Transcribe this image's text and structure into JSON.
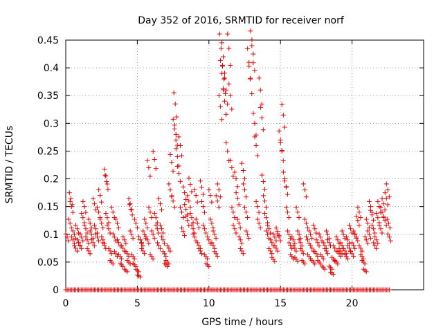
{
  "chart_data": {
    "type": "scatter",
    "title": "Day 352 of 2016, SRMTID for receiver norf",
    "xlabel": "GPS time / hours",
    "ylabel": "SRMTID / TECUs",
    "xlim": [
      0,
      25
    ],
    "ylim": [
      0,
      0.45
    ],
    "xticks": [
      0,
      5,
      10,
      15,
      20
    ],
    "xtick_labels": [
      "0",
      "5",
      "10",
      "15",
      "20"
    ],
    "yticks": [
      0,
      0.05,
      0.1,
      0.15,
      0.2,
      0.25,
      0.3,
      0.35,
      0.4,
      0.45
    ],
    "ytick_labels": [
      "0",
      "0.05",
      "0.1",
      "0.15",
      "0.2",
      "0.25",
      "0.3",
      "0.35",
      "0.4",
      "0.45"
    ],
    "grid": true,
    "marker": "+",
    "color": "#e00000",
    "data_range_hours": [
      0,
      22.6
    ],
    "series": [
      {
        "name": "SRMTID",
        "points": [
          [
            0.1,
            0.095
          ],
          [
            0.3,
            0.12
          ],
          [
            0.35,
            0.165
          ],
          [
            0.4,
            0.15
          ],
          [
            0.5,
            0.09
          ],
          [
            0.6,
            0.1
          ],
          [
            0.7,
            0.075
          ],
          [
            0.8,
            0.11
          ],
          [
            0.9,
            0.085
          ],
          [
            1.0,
            0.08
          ],
          [
            1.1,
            0.095
          ],
          [
            1.2,
            0.13
          ],
          [
            1.3,
            0.15
          ],
          [
            1.4,
            0.11
          ],
          [
            1.5,
            0.09
          ],
          [
            1.6,
            0.07
          ],
          [
            1.7,
            0.12
          ],
          [
            1.8,
            0.1
          ],
          [
            1.9,
            0.085
          ],
          [
            2.0,
            0.155
          ],
          [
            2.1,
            0.11
          ],
          [
            2.2,
            0.095
          ],
          [
            2.3,
            0.14
          ],
          [
            2.4,
            0.17
          ],
          [
            2.5,
            0.12
          ],
          [
            2.6,
            0.09
          ],
          [
            2.7,
            0.08
          ],
          [
            2.8,
            0.205
          ],
          [
            2.85,
            0.195
          ],
          [
            2.9,
            0.13
          ],
          [
            3.0,
            0.11
          ],
          [
            3.1,
            0.07
          ],
          [
            3.2,
            0.05
          ],
          [
            3.3,
            0.14
          ],
          [
            3.4,
            0.095
          ],
          [
            3.5,
            0.065
          ],
          [
            3.6,
            0.12
          ],
          [
            3.7,
            0.085
          ],
          [
            3.8,
            0.06
          ],
          [
            3.9,
            0.045
          ],
          [
            4.0,
            0.075
          ],
          [
            4.1,
            0.09
          ],
          [
            4.2,
            0.035
          ],
          [
            4.3,
            0.065
          ],
          [
            4.4,
            0.05
          ],
          [
            4.5,
            0.155
          ],
          [
            4.55,
            0.145
          ],
          [
            4.6,
            0.1
          ],
          [
            4.7,
            0.06
          ],
          [
            4.8,
            0.045
          ],
          [
            4.9,
            0.12
          ],
          [
            5.0,
            0.035
          ],
          [
            5.1,
            0.025
          ],
          [
            5.2,
            0.09
          ],
          [
            5.3,
            0.085
          ],
          [
            5.4,
            0.07
          ],
          [
            5.5,
            0.1
          ],
          [
            5.6,
            0.12
          ],
          [
            5.7,
            0.09
          ],
          [
            5.8,
            0.22
          ],
          [
            5.9,
            0.14
          ],
          [
            6.0,
            0.06
          ],
          [
            6.1,
            0.1
          ],
          [
            6.2,
            0.235
          ],
          [
            6.3,
            0.13
          ],
          [
            6.4,
            0.11
          ],
          [
            6.5,
            0.08
          ],
          [
            6.6,
            0.155
          ],
          [
            6.7,
            0.11
          ],
          [
            6.8,
            0.09
          ],
          [
            6.9,
            0.065
          ],
          [
            7.0,
            0.045
          ],
          [
            7.1,
            0.05
          ],
          [
            7.2,
            0.075
          ],
          [
            7.3,
            0.18
          ],
          [
            7.4,
            0.23
          ],
          [
            7.5,
            0.16
          ],
          [
            7.6,
            0.29
          ],
          [
            7.65,
            0.335
          ],
          [
            7.7,
            0.28
          ],
          [
            7.8,
            0.24
          ],
          [
            7.9,
            0.21
          ],
          [
            8.0,
            0.26
          ],
          [
            8.1,
            0.14
          ],
          [
            8.2,
            0.105
          ],
          [
            8.3,
            0.175
          ],
          [
            8.4,
            0.145
          ],
          [
            8.5,
            0.125
          ],
          [
            8.6,
            0.16
          ],
          [
            8.7,
            0.19
          ],
          [
            8.8,
            0.13
          ],
          [
            8.9,
            0.11
          ],
          [
            9.0,
            0.095
          ],
          [
            9.1,
            0.17
          ],
          [
            9.2,
            0.12
          ],
          [
            9.3,
            0.08
          ],
          [
            9.4,
            0.07
          ],
          [
            9.5,
            0.185
          ],
          [
            9.6,
            0.15
          ],
          [
            9.7,
            0.11
          ],
          [
            9.8,
            0.06
          ],
          [
            9.9,
            0.045
          ],
          [
            10.0,
            0.09
          ],
          [
            10.1,
            0.17
          ],
          [
            10.2,
            0.12
          ],
          [
            10.3,
            0.08
          ],
          [
            10.4,
            0.1
          ],
          [
            10.5,
            0.065
          ],
          [
            10.6,
            0.16
          ],
          [
            10.7,
            0.18
          ],
          [
            10.8,
            0.33
          ],
          [
            10.85,
            0.435
          ],
          [
            10.9,
            0.39
          ],
          [
            11.0,
            0.42
          ],
          [
            11.05,
            0.38
          ],
          [
            11.1,
            0.34
          ],
          [
            11.2,
            0.36
          ],
          [
            11.3,
            0.25
          ],
          [
            11.4,
            0.435
          ],
          [
            11.5,
            0.35
          ],
          [
            11.6,
            0.22
          ],
          [
            11.7,
            0.14
          ],
          [
            11.8,
            0.11
          ],
          [
            11.9,
            0.2
          ],
          [
            12.0,
            0.165
          ],
          [
            12.1,
            0.12
          ],
          [
            12.2,
            0.09
          ],
          [
            12.3,
            0.07
          ],
          [
            12.4,
            0.215
          ],
          [
            12.5,
            0.18
          ],
          [
            12.6,
            0.14
          ],
          [
            12.7,
            0.1
          ],
          [
            12.8,
            0.41
          ],
          [
            12.9,
            0.38
          ],
          [
            13.0,
            0.44
          ],
          [
            13.1,
            0.425
          ],
          [
            13.2,
            0.3
          ],
          [
            13.3,
            0.26
          ],
          [
            13.4,
            0.15
          ],
          [
            13.5,
            0.12
          ],
          [
            13.6,
            0.36
          ],
          [
            13.7,
            0.31
          ],
          [
            13.8,
            0.195
          ],
          [
            13.9,
            0.16
          ],
          [
            14.0,
            0.13
          ],
          [
            14.1,
            0.1
          ],
          [
            14.2,
            0.11
          ],
          [
            14.3,
            0.07
          ],
          [
            14.4,
            0.085
          ],
          [
            14.5,
            0.055
          ],
          [
            14.6,
            0.095
          ],
          [
            14.7,
            0.075
          ],
          [
            14.8,
            0.105
          ],
          [
            14.9,
            0.095
          ],
          [
            15.0,
            0.27
          ],
          [
            15.1,
            0.25
          ],
          [
            15.2,
            0.315
          ],
          [
            15.3,
            0.2
          ],
          [
            15.4,
            0.185
          ],
          [
            15.5,
            0.14
          ],
          [
            15.6,
            0.1
          ],
          [
            15.7,
            0.08
          ],
          [
            15.8,
            0.06
          ],
          [
            15.9,
            0.09
          ],
          [
            16.0,
            0.075
          ],
          [
            16.1,
            0.055
          ],
          [
            16.2,
            0.14
          ],
          [
            16.3,
            0.1
          ],
          [
            16.4,
            0.085
          ],
          [
            16.5,
            0.07
          ],
          [
            16.6,
            0.05
          ],
          [
            16.7,
            0.18
          ],
          [
            16.8,
            0.12
          ],
          [
            16.9,
            0.09
          ],
          [
            17.0,
            0.06
          ],
          [
            17.1,
            0.1
          ],
          [
            17.2,
            0.075
          ],
          [
            17.3,
            0.05
          ],
          [
            17.4,
            0.11
          ],
          [
            17.5,
            0.065
          ],
          [
            17.6,
            0.085
          ],
          [
            17.7,
            0.05
          ],
          [
            17.8,
            0.095
          ],
          [
            17.9,
            0.06
          ],
          [
            18.0,
            0.04
          ],
          [
            18.1,
            0.08
          ],
          [
            18.2,
            0.07
          ],
          [
            18.3,
            0.1
          ],
          [
            18.4,
            0.085
          ],
          [
            18.5,
            0.04
          ],
          [
            18.6,
            0.03
          ],
          [
            18.7,
            0.055
          ],
          [
            18.8,
            0.075
          ],
          [
            18.9,
            0.05
          ],
          [
            19.0,
            0.09
          ],
          [
            19.1,
            0.065
          ],
          [
            19.2,
            0.07
          ],
          [
            19.3,
            0.08
          ],
          [
            19.4,
            0.1
          ],
          [
            19.5,
            0.07
          ],
          [
            19.6,
            0.06
          ],
          [
            19.7,
            0.09
          ],
          [
            19.8,
            0.075
          ],
          [
            19.9,
            0.11
          ],
          [
            20.0,
            0.065
          ],
          [
            20.1,
            0.08
          ],
          [
            20.2,
            0.1
          ],
          [
            20.3,
            0.095
          ],
          [
            20.4,
            0.125
          ],
          [
            20.5,
            0.14
          ],
          [
            20.6,
            0.075
          ],
          [
            20.7,
            0.06
          ],
          [
            20.8,
            0.05
          ],
          [
            20.9,
            0.035
          ],
          [
            21.0,
            0.09
          ],
          [
            21.1,
            0.12
          ],
          [
            21.2,
            0.1
          ],
          [
            21.3,
            0.15
          ],
          [
            21.4,
            0.135
          ],
          [
            21.5,
            0.11
          ],
          [
            21.6,
            0.08
          ],
          [
            21.7,
            0.09
          ],
          [
            21.8,
            0.13
          ],
          [
            21.9,
            0.15
          ],
          [
            22.0,
            0.11
          ],
          [
            22.1,
            0.14
          ],
          [
            22.2,
            0.155
          ],
          [
            22.3,
            0.125
          ],
          [
            22.4,
            0.165
          ],
          [
            22.5,
            0.18
          ],
          [
            22.55,
            0.12
          ],
          [
            22.6,
            0.095
          ]
        ]
      }
    ]
  }
}
